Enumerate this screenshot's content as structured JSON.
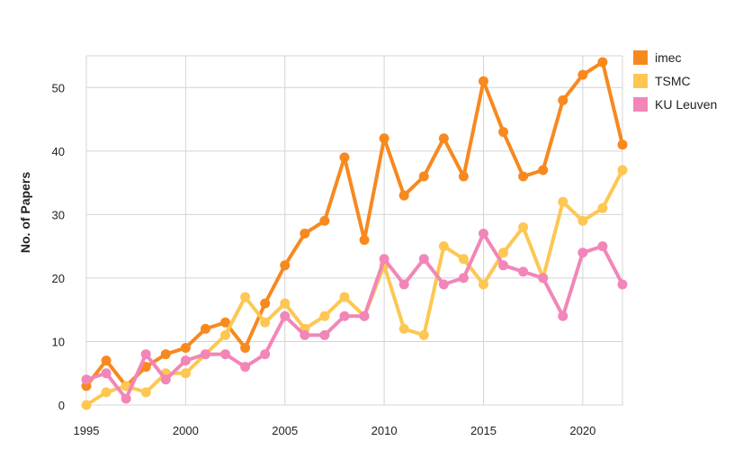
{
  "chart_data": {
    "type": "line",
    "title": "",
    "xlabel": "",
    "ylabel": "No. of Papers",
    "xlim": [
      1995,
      2022
    ],
    "ylim": [
      0,
      55
    ],
    "xticks": [
      1995,
      2000,
      2005,
      2010,
      2015,
      2020
    ],
    "yticks": [
      0,
      10,
      20,
      30,
      40,
      50
    ],
    "grid": true,
    "legend_position": "top-right",
    "x": [
      1995,
      1996,
      1997,
      1998,
      1999,
      2000,
      2001,
      2002,
      2003,
      2004,
      2005,
      2006,
      2007,
      2008,
      2009,
      2010,
      2011,
      2012,
      2013,
      2014,
      2015,
      2016,
      2017,
      2018,
      2019,
      2020,
      2021,
      2022
    ],
    "series": [
      {
        "name": "imec",
        "color": "#f7891f",
        "values": [
          3,
          7,
          3,
          6,
          8,
          9,
          12,
          13,
          9,
          16,
          22,
          27,
          29,
          39,
          26,
          42,
          33,
          36,
          42,
          36,
          51,
          43,
          36,
          37,
          48,
          52,
          54,
          41
        ]
      },
      {
        "name": "TSMC",
        "color": "#fdc752",
        "values": [
          0,
          2,
          3,
          2,
          5,
          5,
          8,
          11,
          17,
          13,
          16,
          12,
          14,
          17,
          14,
          22,
          12,
          11,
          25,
          23,
          19,
          24,
          28,
          20,
          32,
          29,
          31,
          37
        ]
      },
      {
        "name": "KU Leuven",
        "color": "#f286b8",
        "values": [
          4,
          5,
          1,
          8,
          4,
          7,
          8,
          8,
          6,
          8,
          14,
          11,
          11,
          14,
          14,
          23,
          19,
          23,
          19,
          20,
          27,
          22,
          21,
          20,
          14,
          24,
          25,
          19
        ]
      }
    ]
  }
}
